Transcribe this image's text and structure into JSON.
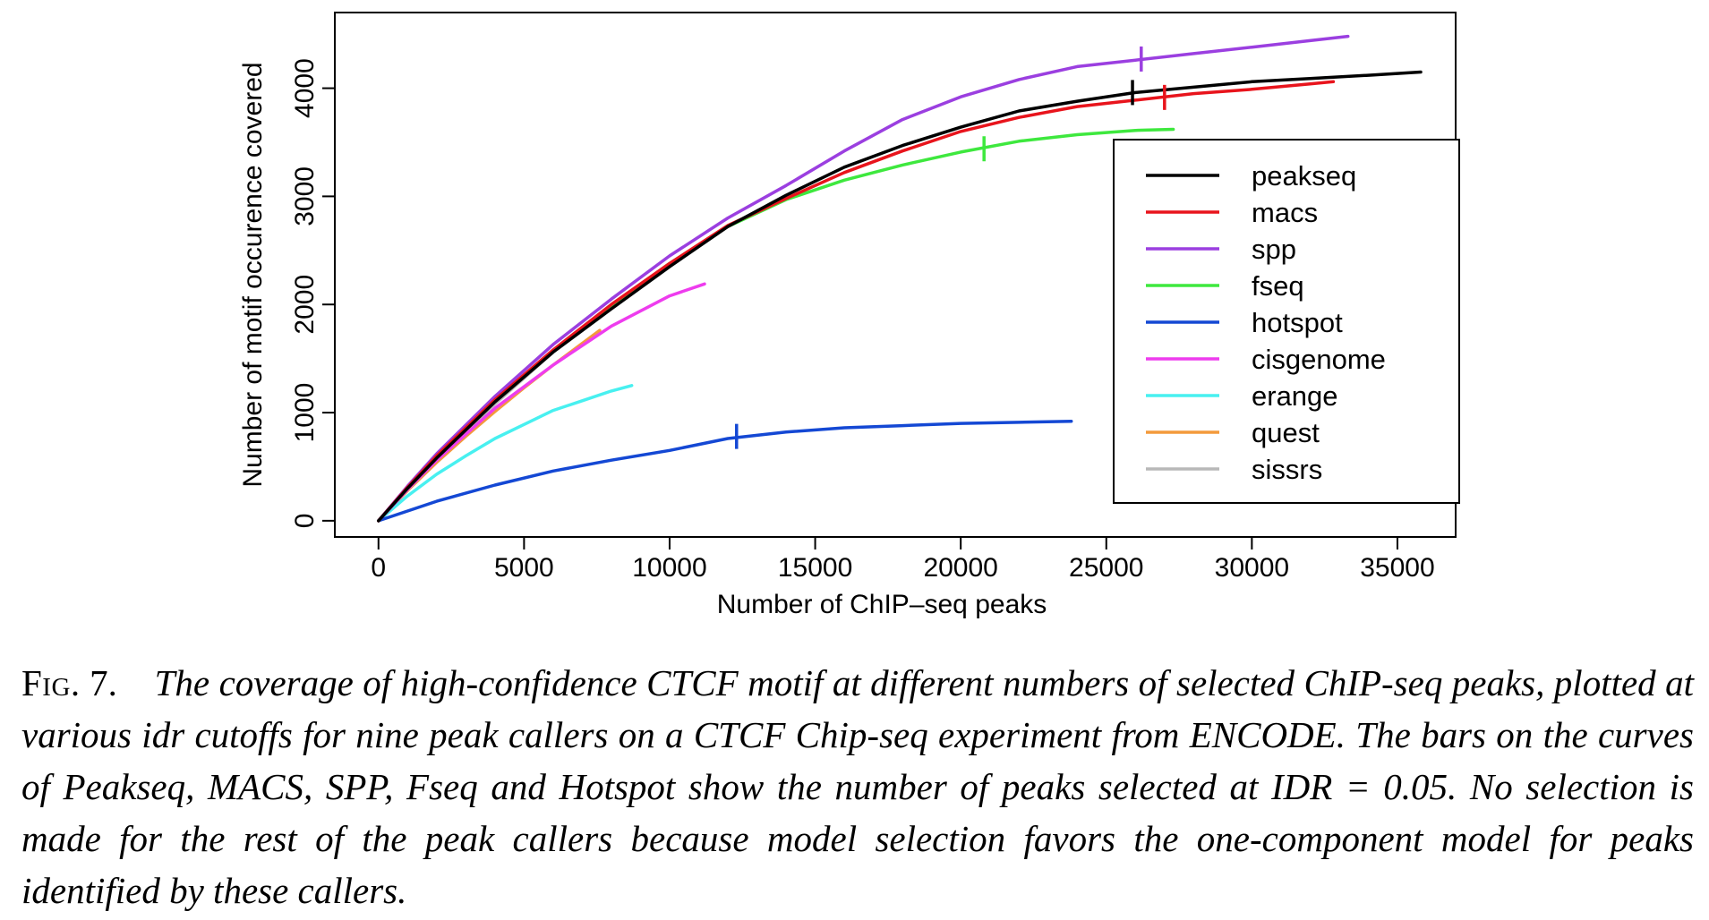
{
  "chart_data": {
    "type": "line",
    "xlabel": "Number of ChIP–seq peaks",
    "ylabel": "Number of motif occurence covered",
    "xlim": [
      -1500,
      37000
    ],
    "ylim": [
      -150,
      4700
    ],
    "xticks": [
      0,
      5000,
      10000,
      15000,
      20000,
      25000,
      30000,
      35000
    ],
    "yticks": [
      0,
      1000,
      2000,
      3000,
      4000
    ],
    "grid": false,
    "legend_position": "right",
    "series": [
      {
        "name": "peakseq",
        "color": "#000000",
        "x": [
          0,
          1000,
          2000,
          4000,
          6000,
          8000,
          10000,
          12000,
          14000,
          16000,
          18000,
          20000,
          22000,
          24000,
          26000,
          28000,
          30000,
          32000,
          34000,
          35800
        ],
        "y": [
          0,
          300,
          580,
          1100,
          1560,
          1960,
          2350,
          2720,
          3010,
          3270,
          3470,
          3640,
          3790,
          3880,
          3960,
          4010,
          4060,
          4090,
          4120,
          4150
        ],
        "idr_mark": {
          "x": 25900,
          "y": 3960
        }
      },
      {
        "name": "macs",
        "color": "#e8141c",
        "x": [
          0,
          1000,
          2000,
          4000,
          6000,
          8000,
          10000,
          12000,
          14000,
          16000,
          18000,
          20000,
          22000,
          24000,
          26000,
          28000,
          30000,
          32000,
          32800
        ],
        "y": [
          0,
          310,
          600,
          1120,
          1580,
          2000,
          2380,
          2730,
          2980,
          3220,
          3420,
          3600,
          3730,
          3830,
          3890,
          3950,
          3990,
          4040,
          4060
        ],
        "idr_mark": {
          "x": 27000,
          "y": 3915
        }
      },
      {
        "name": "spp",
        "color": "#9b3fe0",
        "x": [
          0,
          1000,
          2000,
          4000,
          6000,
          8000,
          10000,
          12000,
          14000,
          16000,
          18000,
          20000,
          22000,
          24000,
          26000,
          28000,
          30000,
          32000,
          33300
        ],
        "y": [
          0,
          320,
          620,
          1150,
          1630,
          2050,
          2450,
          2800,
          3100,
          3420,
          3710,
          3920,
          4080,
          4200,
          4260,
          4320,
          4380,
          4440,
          4480
        ],
        "idr_mark": {
          "x": 26200,
          "y": 4270
        }
      },
      {
        "name": "fseq",
        "color": "#3ee83e",
        "x": [
          0,
          1000,
          2000,
          4000,
          6000,
          8000,
          10000,
          12000,
          14000,
          16000,
          18000,
          20000,
          22000,
          24000,
          26000,
          27300
        ],
        "y": [
          0,
          310,
          600,
          1110,
          1570,
          1990,
          2380,
          2720,
          2970,
          3150,
          3290,
          3410,
          3510,
          3570,
          3610,
          3620
        ],
        "idr_mark": {
          "x": 20800,
          "y": 3440
        }
      },
      {
        "name": "hotspot",
        "color": "#1448d4",
        "x": [
          0,
          1000,
          2000,
          4000,
          6000,
          8000,
          10000,
          12000,
          14000,
          16000,
          18000,
          20000,
          22000,
          23800
        ],
        "y": [
          0,
          90,
          180,
          330,
          460,
          560,
          650,
          760,
          820,
          860,
          880,
          900,
          910,
          920
        ],
        "idr_mark": {
          "x": 12300,
          "y": 780
        }
      },
      {
        "name": "cisgenome",
        "color": "#ee3cee",
        "x": [
          0,
          1000,
          2000,
          4000,
          6000,
          8000,
          10000,
          11200
        ],
        "y": [
          0,
          290,
          560,
          1040,
          1440,
          1800,
          2080,
          2190
        ]
      },
      {
        "name": "erange",
        "color": "#48f0f0",
        "x": [
          0,
          1000,
          2000,
          3000,
          4000,
          5000,
          6000,
          7000,
          8000,
          8700
        ],
        "y": [
          0,
          230,
          430,
          600,
          760,
          890,
          1020,
          1110,
          1200,
          1250
        ]
      },
      {
        "name": "quest",
        "color": "#f39a3c",
        "x": [
          0,
          1000,
          2000,
          3000,
          4000,
          5000,
          6000,
          7000,
          7600
        ],
        "y": [
          0,
          280,
          540,
          780,
          1010,
          1230,
          1440,
          1640,
          1760
        ]
      },
      {
        "name": "sissrs",
        "color": "#b8b8b8",
        "x": [
          0,
          1000,
          2000,
          3000,
          4000,
          5000,
          6000,
          6500
        ],
        "y": [
          0,
          300,
          580,
          830,
          1080,
          1320,
          1560,
          1670
        ]
      }
    ]
  },
  "caption": {
    "label": "Fig.",
    "number": "7.",
    "text": "The coverage of high-confidence CTCF motif at different numbers of selected ChIP-seq peaks, plotted at various idr cutoffs for nine peak callers on a CTCF Chip-seq experiment from ENCODE. The bars on the curves of Peakseq, MACS, SPP, Fseq and Hotspot show the number of peaks selected at IDR = 0.05. No selection is made for the rest of the peak callers because model selection favors the one-component model for peaks identified by these callers."
  }
}
